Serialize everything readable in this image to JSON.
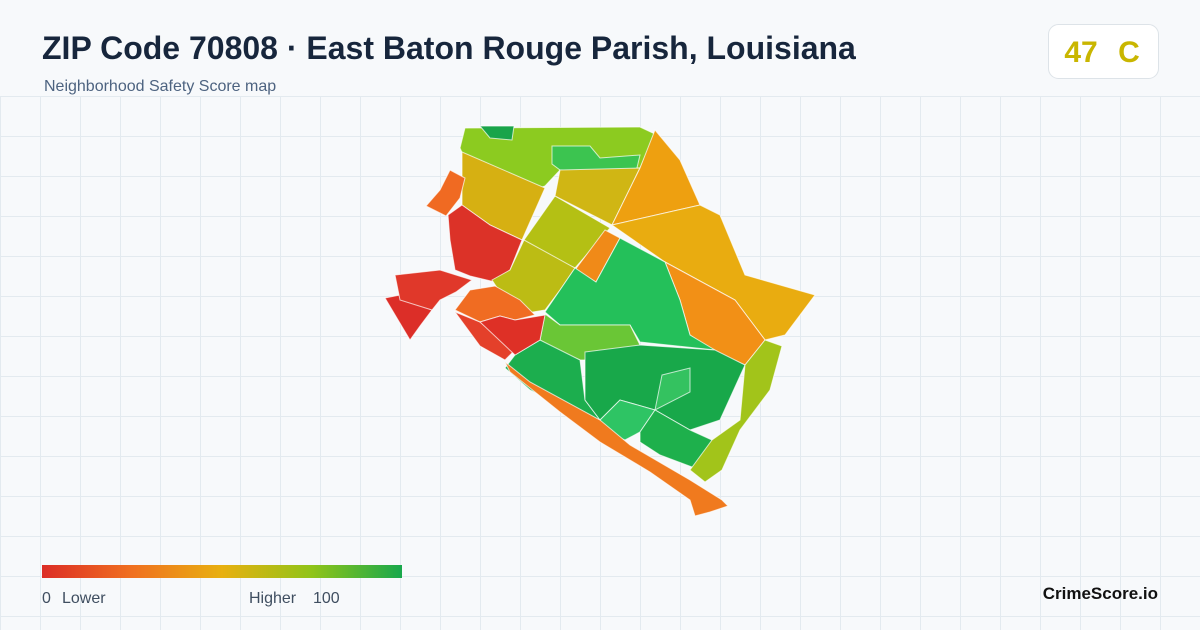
{
  "header": {
    "title": "ZIP Code 70808 · East Baton Rouge Parish, Louisiana",
    "subtitle": "Neighborhood Safety Score map"
  },
  "score": {
    "value": "47",
    "grade": "C"
  },
  "legend": {
    "min": "0",
    "min_label": "Lower",
    "max_label": "Higher",
    "max": "100"
  },
  "brand": "CrimeScore.io"
}
